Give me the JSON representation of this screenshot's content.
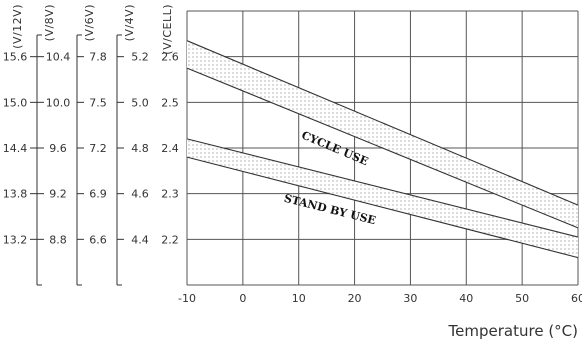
{
  "chart_data": {
    "type": "line",
    "title": "",
    "xlabel": "Temperature (°C)",
    "x_ticks": [
      -10,
      0,
      10,
      20,
      30,
      40,
      50,
      60
    ],
    "xlim": [
      -10,
      60
    ],
    "ylim": [
      2.1,
      2.7
    ],
    "grid": true,
    "y_axes": [
      {
        "unit": "(V/12V)",
        "ticks": [
          "15.6",
          "15.0",
          "14.4",
          "13.8",
          "13.2"
        ]
      },
      {
        "unit": "(V/8V)",
        "ticks": [
          "10.4",
          "10.0",
          "9.6",
          "9.2",
          "8.8"
        ]
      },
      {
        "unit": "(V/6V)",
        "ticks": [
          "7.8",
          "7.5",
          "7.2",
          "6.9",
          "6.6"
        ]
      },
      {
        "unit": "(V/4V)",
        "ticks": [
          "5.2",
          "5.0",
          "4.8",
          "4.6",
          "4.4"
        ]
      },
      {
        "unit": "(V/CELL)",
        "ticks": [
          "2.6",
          "2.5",
          "2.4",
          "2.3",
          "2.2"
        ]
      }
    ],
    "y_tick_values": [
      2.6,
      2.5,
      2.4,
      2.3,
      2.2
    ],
    "bands": [
      {
        "name": "CYCLE USE",
        "x": [
          -10,
          60
        ],
        "upper": [
          2.635,
          2.275
        ],
        "lower": [
          2.575,
          2.225
        ]
      },
      {
        "name": "STAND BY USE",
        "x": [
          -10,
          60
        ],
        "upper": [
          2.42,
          2.205
        ],
        "lower": [
          2.38,
          2.16
        ]
      }
    ]
  }
}
